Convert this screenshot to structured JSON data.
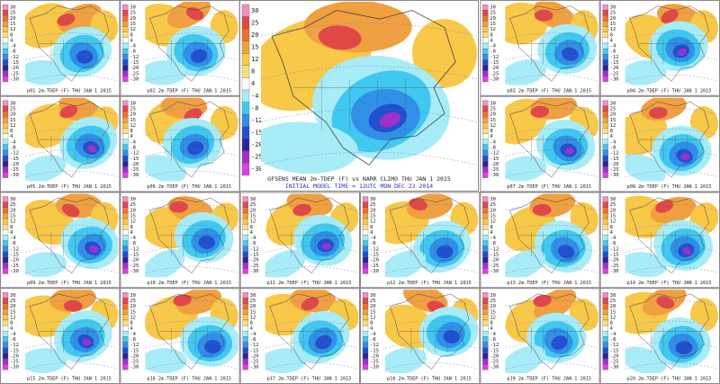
{
  "colorbar": {
    "labels": [
      "30",
      "25",
      "20",
      "15",
      "12",
      "8",
      "4",
      "-4",
      "-8",
      "-12",
      "-15",
      "-20",
      "-25",
      "-30"
    ],
    "colors": [
      "#f090c0",
      "#e04848",
      "#f07030",
      "#f0a040",
      "#f8c848",
      "#f8e080",
      "#ffffff",
      "#a8ecf8",
      "#40c8f0",
      "#3090e8",
      "#2050d0",
      "#3020a0",
      "#a030c8",
      "#e040e8"
    ]
  },
  "mean": {
    "title": "GFSENS MEAN 2m-TDEP (F) vs NARR CLIMO THU JAN 1 2015",
    "subtitle": "INITIAL MODEL TIME = 12UTC MON DEC 22 2014"
  },
  "panels": [
    "p01 2m-TDEP (F) THU JAN 1 2015",
    "p02 2m-TDEP (F) THU JAN 1 2015",
    "p03 2m-TDEP (F) THU JAN 1 2015",
    "p04 2m-TDEP (F) THU JAN 1 2015",
    "p05 2m-TDEP (F) THU JAN 1 2015",
    "p06 2m-TDEP (F) THU JAN 1 2015",
    "p07 2m-TDEP (F) THU JAN 1 2015",
    "p08 2m-TDEP (F) THU JAN 1 2015",
    "p09 2m-TDEP (F) THU JAN 1 2015",
    "p10 2m-TDEP (F) THU JAN 1 2015",
    "p11 2m-TDEP (F) THU JAN 1 2015",
    "p12 2m-TDEP (F) THU JAN 1 2015",
    "p13 2m-TDEP (F) THU JAN 1 2015",
    "p14 2m-TDEP (F) THU JAN 1 2015",
    "p15 2m-TDEP (F) THU JAN 1 2015",
    "p16 2m-TDEP (F) THU JAN 1 2015",
    "p17 2m-TDEP (F) THU JAN 1 2015",
    "p18 2m-TDEP (F) THU JAN 1 2015",
    "p19 2m-TDEP (F) THU JAN 1 2015",
    "p20 2m-TDEP (F) THU JAN 1 2015"
  ]
}
